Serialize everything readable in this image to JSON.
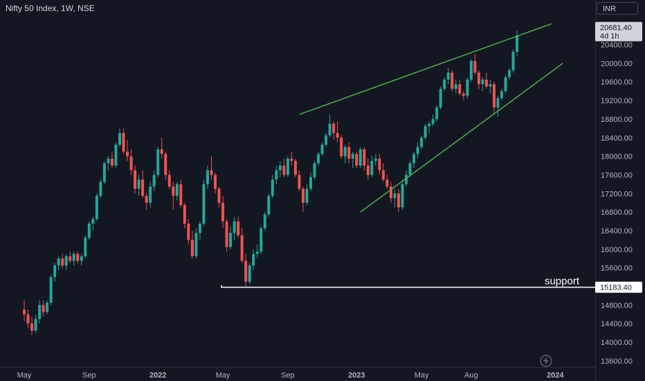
{
  "header": {
    "symbol_title": "Nifty 50 Index, 1W, NSE",
    "currency": "INR"
  },
  "price_badges": {
    "last_price": "20681.40",
    "countdown": "4d 1h",
    "support_price": "15183.40"
  },
  "annotations": {
    "support_label": "support"
  },
  "colors": {
    "background": "#131722",
    "up": "#26a69a",
    "down": "#ef5350",
    "trendline": "#4caf50",
    "support_line": "#ffffff",
    "axis_text": "#b2b5be"
  },
  "icons": {
    "bottom": "flash-icon"
  },
  "chart_data": {
    "type": "candlestick",
    "title": "Nifty 50 Index, 1W, NSE",
    "ylim": [
      13500,
      21300
    ],
    "y_ticks": [
      13600,
      14000,
      14400,
      14800,
      15200,
      15600,
      16000,
      16400,
      16800,
      17200,
      17600,
      18000,
      18400,
      18800,
      19200,
      19600,
      20000,
      20400,
      20800
    ],
    "y_tick_labels": [
      "13600.00",
      "14000.00",
      "14400.00",
      "14800.00",
      "15200.00",
      "15600.00",
      "16000.00",
      "16400.00",
      "16800.00",
      "17200.00",
      "17600.00",
      "18000.00",
      "18400.00",
      "18800.00",
      "19200.00",
      "19600.00",
      "20000.00",
      "20400.00",
      "20800.00"
    ],
    "x_ticks": [
      {
        "label": "May",
        "bar": 0,
        "bold": false
      },
      {
        "label": "Sep",
        "bar": 17,
        "bold": false
      },
      {
        "label": "2022",
        "bar": 35,
        "bold": true
      },
      {
        "label": "May",
        "bar": 52,
        "bold": false
      },
      {
        "label": "Sep",
        "bar": 69,
        "bold": false
      },
      {
        "label": "2023",
        "bar": 87,
        "bold": true
      },
      {
        "label": "May",
        "bar": 104,
        "bold": false
      },
      {
        "label": "Aug",
        "bar": 117,
        "bold": false
      },
      {
        "label": "2024",
        "bar": 139,
        "bold": true
      }
    ],
    "candles": [
      [
        14700,
        14900,
        14450,
        14600
      ],
      [
        14600,
        14700,
        14300,
        14400
      ],
      [
        14400,
        14550,
        14150,
        14250
      ],
      [
        14250,
        14600,
        14200,
        14500
      ],
      [
        14500,
        14900,
        14400,
        14800
      ],
      [
        14800,
        14900,
        14550,
        14650
      ],
      [
        14650,
        14900,
        14600,
        14850
      ],
      [
        14850,
        15450,
        14800,
        15400
      ],
      [
        15400,
        15700,
        15300,
        15650
      ],
      [
        15650,
        15850,
        15550,
        15800
      ],
      [
        15800,
        15900,
        15600,
        15650
      ],
      [
        15650,
        15900,
        15550,
        15850
      ],
      [
        15850,
        15950,
        15700,
        15750
      ],
      [
        15750,
        15950,
        15650,
        15900
      ],
      [
        15900,
        15950,
        15700,
        15750
      ],
      [
        15750,
        15900,
        15650,
        15850
      ],
      [
        15850,
        16300,
        15800,
        16250
      ],
      [
        16250,
        16600,
        16200,
        16550
      ],
      [
        16550,
        16700,
        16400,
        16650
      ],
      [
        16650,
        17200,
        16600,
        17150
      ],
      [
        17150,
        17500,
        17100,
        17450
      ],
      [
        17450,
        17900,
        17400,
        17850
      ],
      [
        17850,
        18000,
        17700,
        17950
      ],
      [
        17950,
        18100,
        17750,
        17800
      ],
      [
        17800,
        18300,
        17750,
        18250
      ],
      [
        18250,
        18600,
        18200,
        18500
      ],
      [
        18500,
        18600,
        18050,
        18100
      ],
      [
        18100,
        18350,
        17900,
        18000
      ],
      [
        18000,
        18150,
        17600,
        17700
      ],
      [
        17700,
        17800,
        17200,
        17300
      ],
      [
        17300,
        17600,
        17150,
        17500
      ],
      [
        17500,
        17700,
        17100,
        17150
      ],
      [
        17150,
        17200,
        16850,
        17000
      ],
      [
        17000,
        17450,
        16900,
        17350
      ],
      [
        17350,
        17700,
        17250,
        17600
      ],
      [
        17600,
        18200,
        17550,
        18150
      ],
      [
        18150,
        18400,
        17950,
        18050
      ],
      [
        18050,
        18100,
        17500,
        17600
      ],
      [
        17600,
        17700,
        17300,
        17350
      ],
      [
        17350,
        17450,
        16850,
        17150
      ],
      [
        17150,
        17450,
        17050,
        17400
      ],
      [
        17400,
        17500,
        16900,
        16950
      ],
      [
        16950,
        17000,
        16450,
        16550
      ],
      [
        16550,
        16650,
        16100,
        16200
      ],
      [
        16200,
        16400,
        15800,
        15850
      ],
      [
        15850,
        16450,
        15800,
        16350
      ],
      [
        16350,
        16600,
        16200,
        16550
      ],
      [
        16550,
        17500,
        16500,
        17400
      ],
      [
        17400,
        17800,
        17300,
        17700
      ],
      [
        17700,
        18000,
        17500,
        17600
      ],
      [
        17600,
        17650,
        17200,
        17300
      ],
      [
        17300,
        17350,
        16900,
        17000
      ],
      [
        17000,
        17150,
        16450,
        16600
      ],
      [
        16600,
        16650,
        15950,
        16050
      ],
      [
        16050,
        16500,
        16000,
        16350
      ],
      [
        16350,
        16700,
        16200,
        16600
      ],
      [
        16600,
        16700,
        16250,
        16300
      ],
      [
        16300,
        16450,
        15700,
        15750
      ],
      [
        15750,
        15900,
        15200,
        15300
      ],
      [
        15300,
        15700,
        15250,
        15650
      ],
      [
        15650,
        16000,
        15550,
        15900
      ],
      [
        15900,
        16100,
        15800,
        15950
      ],
      [
        15950,
        16500,
        15900,
        16450
      ],
      [
        16450,
        16800,
        16400,
        16750
      ],
      [
        16750,
        17200,
        16700,
        17150
      ],
      [
        17150,
        17600,
        17100,
        17500
      ],
      [
        17500,
        17800,
        17400,
        17700
      ],
      [
        17700,
        17900,
        17550,
        17800
      ],
      [
        17800,
        17950,
        17550,
        17600
      ],
      [
        17600,
        18000,
        17550,
        17950
      ],
      [
        17950,
        18100,
        17800,
        17900
      ],
      [
        17900,
        17950,
        17550,
        17600
      ],
      [
        17600,
        17700,
        17250,
        17300
      ],
      [
        17300,
        17350,
        16800,
        17000
      ],
      [
        17000,
        17400,
        16950,
        17300
      ],
      [
        17300,
        17650,
        17250,
        17550
      ],
      [
        17550,
        17900,
        17500,
        17850
      ],
      [
        17850,
        18100,
        17800,
        18050
      ],
      [
        18050,
        18300,
        18000,
        18250
      ],
      [
        18250,
        18500,
        18200,
        18450
      ],
      [
        18450,
        18900,
        18400,
        18700
      ],
      [
        18700,
        18750,
        18350,
        18500
      ],
      [
        18500,
        18750,
        18300,
        18400
      ],
      [
        18400,
        18450,
        17950,
        18000
      ],
      [
        18000,
        18250,
        17850,
        18200
      ],
      [
        18200,
        18300,
        17850,
        17950
      ],
      [
        17950,
        18100,
        17750,
        18050
      ],
      [
        18050,
        18100,
        17750,
        17800
      ],
      [
        17800,
        18200,
        17750,
        18150
      ],
      [
        18150,
        18200,
        17700,
        17800
      ],
      [
        17800,
        17950,
        17500,
        17600
      ],
      [
        17600,
        18000,
        17550,
        17900
      ],
      [
        17900,
        18050,
        17800,
        17950
      ],
      [
        17950,
        18050,
        17600,
        17700
      ],
      [
        17700,
        17850,
        17450,
        17500
      ],
      [
        17500,
        17600,
        17300,
        17350
      ],
      [
        17350,
        17450,
        17000,
        17100
      ],
      [
        17100,
        17300,
        16900,
        17200
      ],
      [
        17200,
        17300,
        16800,
        16900
      ],
      [
        16900,
        17500,
        16850,
        17400
      ],
      [
        17400,
        17700,
        17350,
        17600
      ],
      [
        17600,
        17900,
        17550,
        17850
      ],
      [
        17850,
        18100,
        17750,
        18050
      ],
      [
        18050,
        18300,
        17950,
        18200
      ],
      [
        18200,
        18450,
        18150,
        18400
      ],
      [
        18400,
        18700,
        18350,
        18650
      ],
      [
        18650,
        18750,
        18500,
        18700
      ],
      [
        18700,
        18900,
        18650,
        18800
      ],
      [
        18800,
        19100,
        18750,
        19050
      ],
      [
        19050,
        19500,
        19000,
        19450
      ],
      [
        19450,
        19700,
        19400,
        19650
      ],
      [
        19650,
        19900,
        19550,
        19800
      ],
      [
        19800,
        19850,
        19400,
        19450
      ],
      [
        19450,
        19650,
        19350,
        19550
      ],
      [
        19550,
        19650,
        19300,
        19350
      ],
      [
        19350,
        19400,
        19200,
        19300
      ],
      [
        19300,
        19700,
        19250,
        19650
      ],
      [
        19650,
        20100,
        19600,
        20050
      ],
      [
        20050,
        20200,
        19750,
        19800
      ],
      [
        19800,
        19850,
        19450,
        19550
      ],
      [
        19550,
        19700,
        19400,
        19650
      ],
      [
        19650,
        19800,
        19450,
        19500
      ],
      [
        19500,
        19650,
        19350,
        19550
      ],
      [
        19550,
        19600,
        18900,
        19050
      ],
      [
        19050,
        19300,
        18850,
        19250
      ],
      [
        19250,
        19450,
        19200,
        19400
      ],
      [
        19400,
        19750,
        19350,
        19700
      ],
      [
        19700,
        19900,
        19650,
        19850
      ],
      [
        19850,
        20300,
        19800,
        20250
      ],
      [
        20250,
        20700,
        20150,
        20600
      ]
    ],
    "trendlines": [
      {
        "role": "upper",
        "points": [
          [
            72,
            18900
          ],
          [
            138,
            20850
          ]
        ]
      },
      {
        "role": "lower",
        "points": [
          [
            88,
            16800
          ],
          [
            141,
            20000
          ]
        ]
      }
    ],
    "support": {
      "bar_from": 52,
      "value": 15183.4,
      "label": "support"
    },
    "last_price": 20681.4
  }
}
